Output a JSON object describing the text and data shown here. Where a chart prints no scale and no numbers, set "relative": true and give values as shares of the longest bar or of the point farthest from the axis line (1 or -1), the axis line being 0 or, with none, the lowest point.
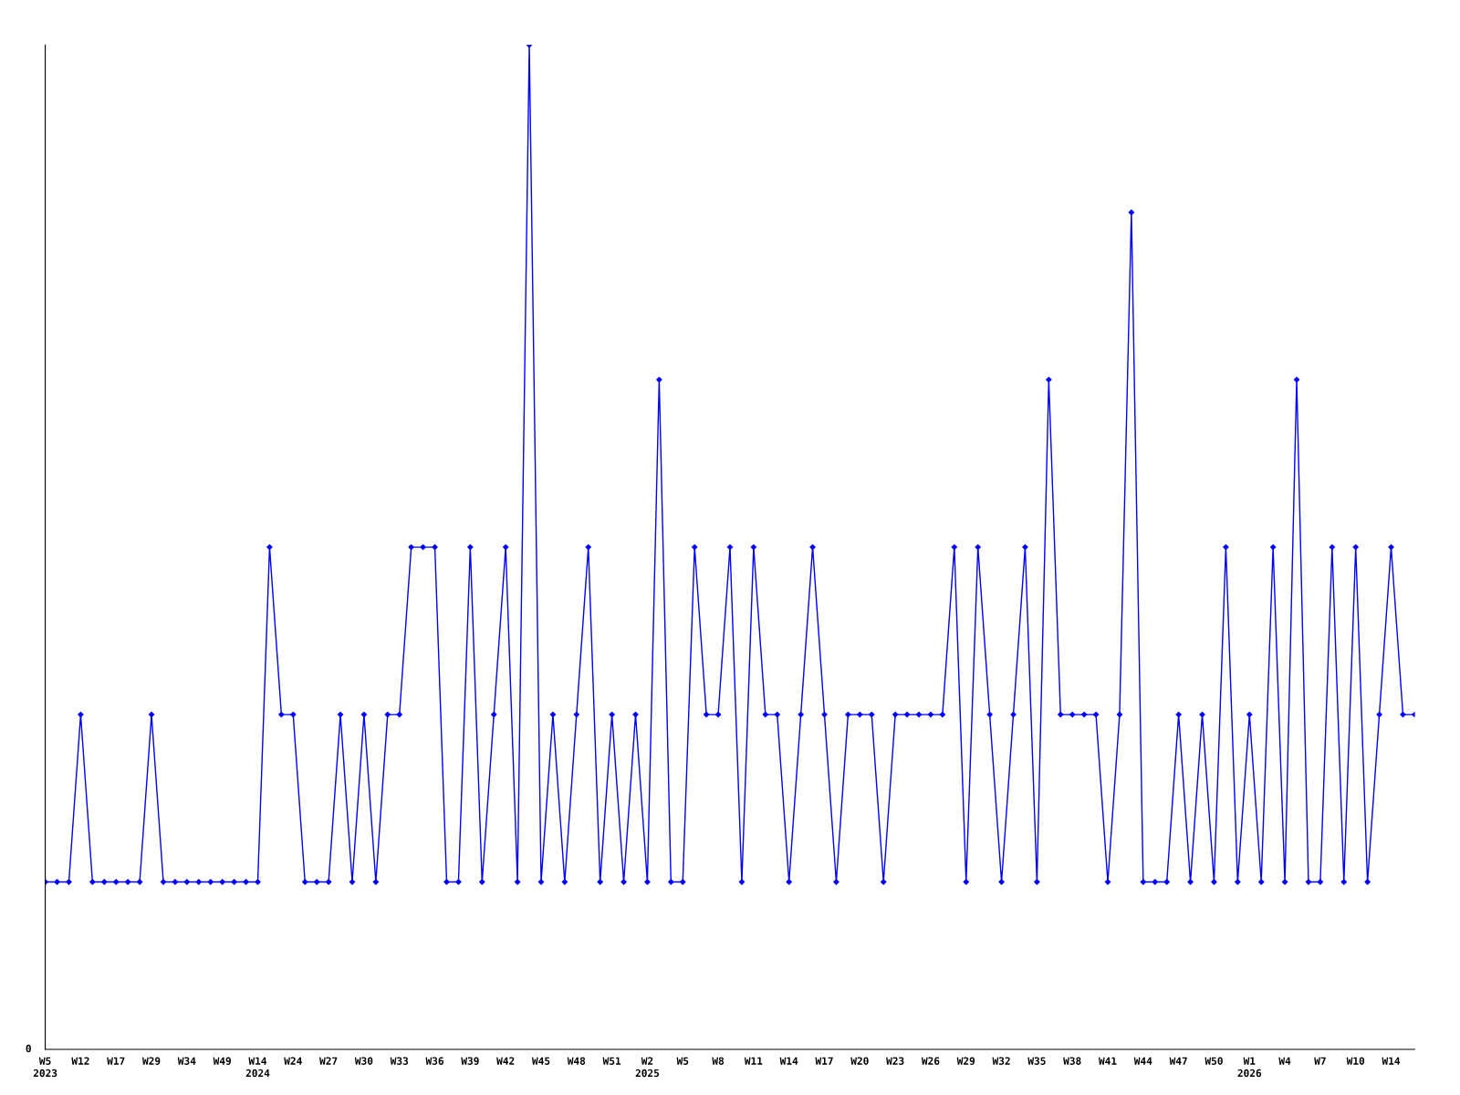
{
  "chart_data": {
    "type": "line",
    "relative": true,
    "color": "#0000ff",
    "marker": "diamond",
    "line_style": "solid",
    "grid": false,
    "legend": false,
    "annotations": [
      "0"
    ],
    "categories": [
      "W5\n2023",
      null,
      null,
      "W12",
      null,
      null,
      "W17",
      null,
      null,
      "W29",
      null,
      null,
      "W34",
      null,
      null,
      "W49",
      null,
      null,
      "W14\n2024",
      null,
      null,
      "W24",
      null,
      null,
      "W27",
      null,
      null,
      "W30",
      null,
      null,
      "W33",
      null,
      null,
      "W36",
      null,
      null,
      "W39",
      null,
      null,
      "W42",
      null,
      null,
      "W45",
      null,
      null,
      "W48",
      null,
      null,
      "W51",
      null,
      null,
      "W2\n2025",
      null,
      null,
      "W5",
      null,
      null,
      "W8",
      null,
      null,
      "W11",
      null,
      null,
      "W14",
      null,
      null,
      "W17",
      null,
      null,
      "W20",
      null,
      null,
      "W23",
      null,
      null,
      "W26",
      null,
      null,
      "W29",
      null,
      null,
      "W32",
      null,
      null,
      "W35",
      null,
      null,
      "W38",
      null,
      null,
      "W41",
      null,
      null,
      "W44",
      null,
      null,
      "W47",
      null,
      null,
      "W50",
      null,
      null,
      "W1\n2026",
      null,
      null,
      "W4",
      null,
      null,
      "W7",
      null,
      null,
      "W10",
      null,
      null,
      "W14",
      null,
      null
    ],
    "values": [
      0.1667,
      0.1667,
      0.1667,
      0.3333,
      0.1667,
      0.1667,
      0.1667,
      0.1667,
      0.1667,
      0.3333,
      0.1667,
      0.1667,
      0.1667,
      0.1667,
      0.1667,
      0.1667,
      0.1667,
      0.1667,
      0.1667,
      0.5,
      0.3333,
      0.3333,
      0.1667,
      0.1667,
      0.1667,
      0.3333,
      0.1667,
      0.3333,
      0.1667,
      0.3333,
      0.3333,
      0.5,
      0.5,
      0.5,
      0.1667,
      0.1667,
      0.5,
      0.1667,
      0.3333,
      0.5,
      0.1667,
      1,
      0.1667,
      0.3333,
      0.1667,
      0.3333,
      0.5,
      0.1667,
      0.3333,
      0.1667,
      0.3333,
      0.1667,
      0.6667,
      0.1667,
      0.1667,
      0.5,
      0.3333,
      0.3333,
      0.5,
      0.1667,
      0.5,
      0.3333,
      0.3333,
      0.1667,
      0.3333,
      0.5,
      0.3333,
      0.1667,
      0.3333,
      0.3333,
      0.3333,
      0.1667,
      0.3333,
      0.3333,
      0.3333,
      0.3333,
      0.3333,
      0.5,
      0.1667,
      0.5,
      0.3333,
      0.1667,
      0.3333,
      0.5,
      0.1667,
      0.6667,
      0.3333,
      0.3333,
      0.3333,
      0.3333,
      0.1667,
      0.3333,
      0.8333,
      0.1667,
      0.1667,
      0.1667,
      0.3333,
      0.1667,
      0.3333,
      0.1667,
      0.5,
      0.1667,
      0.3333,
      0.1667,
      0.5,
      0.1667,
      0.6667,
      0.1667,
      0.1667,
      0.5,
      0.1667,
      0.5,
      0.1667,
      0.3333,
      0.5,
      0.3333,
      0.3333
    ]
  }
}
